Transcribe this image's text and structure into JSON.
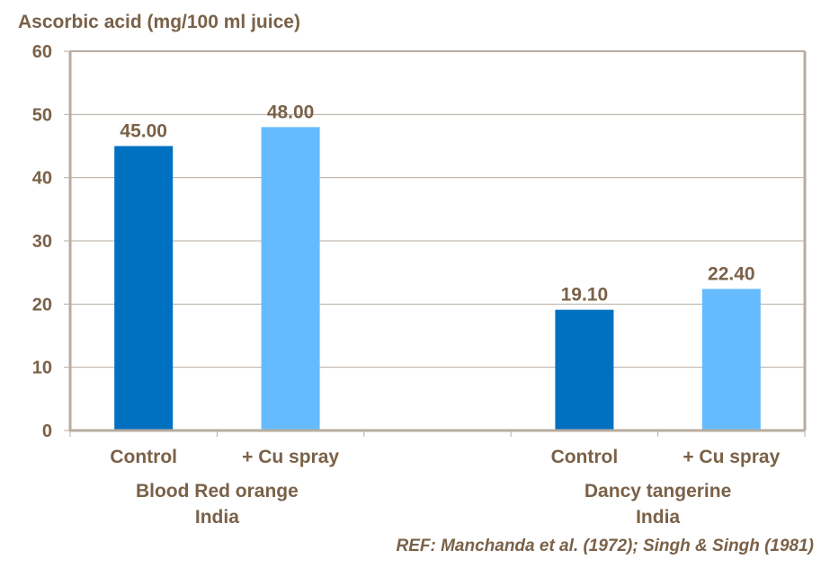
{
  "chart_data": {
    "type": "bar",
    "title": "",
    "ylabel": "Ascorbic acid (mg/100 ml juice)",
    "xlabel": "",
    "ylim": [
      0,
      60
    ],
    "yticks": [
      0,
      10,
      20,
      30,
      40,
      50,
      60
    ],
    "grid": true,
    "categories": [
      "Control",
      "+ Cu spray",
      "",
      "Control",
      "+ Cu spray"
    ],
    "groups": [
      {
        "name": "Blood Red orange",
        "sub": "India",
        "slots": [
          0,
          1
        ]
      },
      {
        "name": "Dancy tangerine",
        "sub": "India",
        "slots": [
          3,
          4
        ]
      }
    ],
    "bars": [
      {
        "slot": 0,
        "category": "Control",
        "group": "Blood Red orange",
        "value": 45.0,
        "label": "45.00",
        "color": "#0070c0"
      },
      {
        "slot": 1,
        "category": "+ Cu spray",
        "group": "Blood Red orange",
        "value": 48.0,
        "label": "48.00",
        "color": "#66bbff"
      },
      {
        "slot": 3,
        "category": "Control",
        "group": "Dancy tangerine",
        "value": 19.1,
        "label": "19.10",
        "color": "#0070c0"
      },
      {
        "slot": 4,
        "category": "+ Cu spray",
        "group": "Dancy tangerine",
        "value": 22.4,
        "label": "22.40",
        "color": "#66bbff"
      }
    ],
    "colors": {
      "text": "#7a6148",
      "axis": "#b8aca0",
      "grid": "#b8aca0"
    }
  },
  "reference": "REF: Manchanda et al. (1972); Singh & Singh (1981)"
}
